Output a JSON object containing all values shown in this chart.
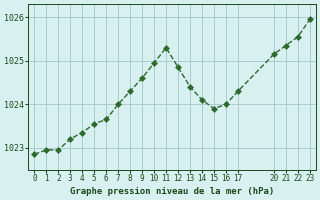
{
  "x": [
    0,
    1,
    2,
    3,
    4,
    5,
    6,
    7,
    8,
    9,
    10,
    11,
    12,
    13,
    14,
    15,
    16,
    17,
    20,
    21,
    22,
    23
  ],
  "y": [
    1022.85,
    1022.95,
    1022.95,
    1023.2,
    1023.35,
    1023.55,
    1023.65,
    1024.0,
    1024.3,
    1024.6,
    1024.95,
    1025.3,
    1024.85,
    1024.4,
    1024.1,
    1023.9,
    1024.0,
    1024.3,
    1025.15,
    1025.35,
    1025.55,
    1025.95
  ],
  "line_color": "#2d6a2d",
  "marker_color": "#2d6a2d",
  "bg_color": "#d8f0f0",
  "grid_color": "#aacccc",
  "title": "Graphe pression niveau de la mer (hPa)",
  "title_color": "#1a4a1a",
  "tick_color": "#1a4a1a",
  "ylabel_ticks": [
    1023,
    1024,
    1025,
    1026
  ],
  "xlim": [
    -0.5,
    23.5
  ],
  "ylim": [
    1022.5,
    1026.3
  ],
  "xticks": [
    0,
    1,
    2,
    3,
    4,
    5,
    6,
    7,
    8,
    9,
    10,
    11,
    12,
    13,
    14,
    15,
    16,
    17,
    20,
    21,
    22,
    23
  ],
  "xtick_labels": [
    "0",
    "1",
    "2",
    "3",
    "4",
    "5",
    "6",
    "7",
    "8",
    "9",
    "10",
    "11",
    "12",
    "13",
    "14",
    "15",
    "16",
    "17",
    "20",
    "21",
    "22",
    "23"
  ]
}
